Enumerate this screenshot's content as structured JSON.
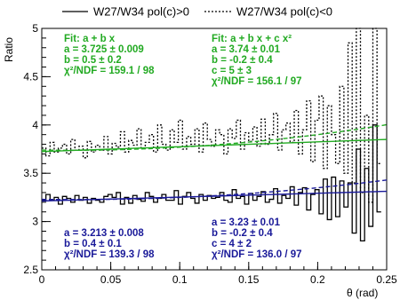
{
  "chart_data": {
    "type": "line",
    "title": "",
    "xlabel": "θ (rad)",
    "ylabel": "Ratio",
    "xlim": [
      0,
      0.25
    ],
    "ylim": [
      2.5,
      5
    ],
    "x_ticks": [
      "0",
      "0.05",
      "0.1",
      "0.15",
      "0.2",
      "0.25"
    ],
    "y_ticks": [
      "2.5",
      "3",
      "3.5",
      "4",
      "4.5",
      "5"
    ],
    "legend": {
      "placement": "top",
      "entries": [
        {
          "label": "W27/W34 pol(c)>0",
          "style": "solid"
        },
        {
          "label": "W27/W34 pol(c)<0",
          "style": "dotted"
        }
      ]
    },
    "x": [
      0.0015,
      0.0045,
      0.0075,
      0.0105,
      0.0135,
      0.0165,
      0.0195,
      0.0225,
      0.0255,
      0.0285,
      0.0315,
      0.0345,
      0.0375,
      0.0405,
      0.0435,
      0.0465,
      0.0495,
      0.0525,
      0.0555,
      0.0585,
      0.0615,
      0.0645,
      0.0675,
      0.0705,
      0.0735,
      0.0765,
      0.0795,
      0.0825,
      0.0855,
      0.0885,
      0.0915,
      0.0945,
      0.0975,
      0.1005,
      0.1035,
      0.1065,
      0.1095,
      0.1125,
      0.1155,
      0.1185,
      0.1215,
      0.1245,
      0.1275,
      0.1305,
      0.1335,
      0.1365,
      0.1395,
      0.1425,
      0.1455,
      0.1485,
      0.1515,
      0.1545,
      0.1575,
      0.1605,
      0.1635,
      0.1665,
      0.1695,
      0.1725,
      0.1755,
      0.1785,
      0.1815,
      0.1845,
      0.1875,
      0.1905,
      0.1935,
      0.1965,
      0.1995,
      0.2025,
      0.2055,
      0.2085,
      0.2115,
      0.2145,
      0.2175,
      0.2205,
      0.2235,
      0.2265,
      0.2295,
      0.2325,
      0.2355,
      0.2385,
      0.2415,
      0.2445
    ],
    "series": [
      {
        "name": "W27/W34 pol(c)>0",
        "style": "solid",
        "color": "#000000",
        "values": [
          3.22,
          3.28,
          3.22,
          3.25,
          3.18,
          3.26,
          3.24,
          3.2,
          3.27,
          3.22,
          3.25,
          3.19,
          3.24,
          3.22,
          3.2,
          3.26,
          3.28,
          3.25,
          3.3,
          3.18,
          3.25,
          3.19,
          3.27,
          3.23,
          3.21,
          3.3,
          3.26,
          3.2,
          3.24,
          3.28,
          3.22,
          3.22,
          3.32,
          3.18,
          3.26,
          3.3,
          3.24,
          3.19,
          3.28,
          3.22,
          3.27,
          3.24,
          3.25,
          3.3,
          3.22,
          3.2,
          3.33,
          3.24,
          3.26,
          3.18,
          3.29,
          3.22,
          3.26,
          3.31,
          3.2,
          3.23,
          3.34,
          3.19,
          3.27,
          3.24,
          3.36,
          3.17,
          3.3,
          3.35,
          3.12,
          3.28,
          3.33,
          3.08,
          3.44,
          3.02,
          3.46,
          3.05,
          3.42,
          3.15,
          3.4,
          2.88,
          3.75,
          2.8,
          3.55,
          2.95,
          4.0,
          3.1
        ]
      },
      {
        "name": "W27/W34 pol(c)<0",
        "style": "dotted",
        "color": "#000000",
        "values": [
          3.76,
          3.68,
          3.82,
          3.72,
          3.76,
          3.8,
          3.7,
          3.85,
          3.74,
          3.78,
          3.66,
          3.83,
          3.72,
          3.79,
          3.74,
          3.88,
          3.7,
          3.81,
          3.77,
          3.93,
          3.72,
          3.84,
          3.79,
          3.96,
          3.76,
          3.82,
          3.9,
          3.72,
          4.0,
          3.8,
          3.74,
          3.95,
          3.82,
          4.05,
          3.75,
          3.88,
          3.8,
          3.96,
          3.72,
          4.02,
          3.85,
          3.78,
          3.95,
          3.9,
          3.7,
          3.96,
          3.86,
          4.05,
          3.75,
          3.92,
          3.83,
          3.98,
          3.78,
          4.06,
          3.8,
          3.9,
          4.12,
          3.74,
          3.95,
          4.02,
          3.82,
          4.15,
          3.7,
          3.95,
          4.25,
          3.62,
          4.05,
          4.3,
          3.55,
          4.2,
          3.9,
          3.6,
          4.4,
          3.5,
          4.85,
          3.4,
          5.0,
          3.3,
          4.1,
          3.2,
          5.0,
          3.6
        ]
      }
    ],
    "fits": [
      {
        "name": "Fit: a + b x",
        "target": "pol(c)<0",
        "color": "#22aa22",
        "style": "solid",
        "a": 3.725,
        "b": 0.5
      },
      {
        "name": "Fit: a + b x + c x²",
        "target": "pol(c)<0",
        "color": "#22aa22",
        "style": "dashed",
        "a": 3.74,
        "b": -0.2,
        "c": 5
      },
      {
        "name": "Fit: a + b x",
        "target": "pol(c)>0",
        "color": "#1a1a99",
        "style": "solid",
        "a": 3.213,
        "b": 0.4
      },
      {
        "name": "Fit: a + b x + c x²",
        "target": "pol(c)>0",
        "color": "#1a1a99",
        "style": "dashed",
        "a": 3.23,
        "b": -0.2,
        "c": 4
      }
    ],
    "annotations": {
      "green_left": [
        "Fit: a + b x",
        "a = 3.725 ± 0.009",
        "b = 0.5 ± 0.2",
        "χ²/NDF = 159.1 / 98"
      ],
      "green_right": [
        "Fit: a + b x + c x²",
        "a = 3.74 ± 0.01",
        "b = -0.2 ± 0.4",
        "c = 5 ± 3",
        "χ²/NDF = 156.1 / 97"
      ],
      "blue_left": [
        "a = 3.213 ± 0.008",
        "b = 0.4 ± 0.1",
        "χ²/NDF = 139.3 / 98"
      ],
      "blue_right": [
        "a = 3.23 ± 0.01",
        "b = -0.2 ± 0.4",
        "c = 4 ± 2",
        "χ²/NDF = 136.0 / 97"
      ]
    },
    "grid": false
  }
}
